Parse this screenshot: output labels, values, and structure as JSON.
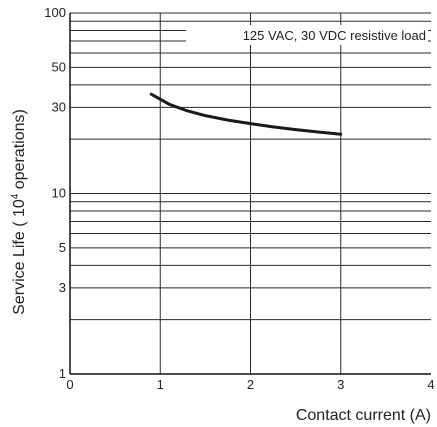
{
  "chart_data": {
    "type": "line",
    "xlabel": "Contact current (A)",
    "ylabel_prefix": "Service Life (  10",
    "ylabel_sup": "4",
    "ylabel_suffix": " operations)",
    "annotation": "125 VAC, 30 VDC resistive load",
    "x_scale": "linear",
    "y_scale": "log",
    "xlim": [
      0,
      4
    ],
    "ylim": [
      1,
      100
    ],
    "x_ticks": [
      "0",
      "1",
      "2",
      "3",
      "4"
    ],
    "y_ticks": [
      {
        "value": 1,
        "label": "1"
      },
      {
        "value": 3,
        "label": "3"
      },
      {
        "value": 5,
        "label": "5"
      },
      {
        "value": 10,
        "label": "10"
      },
      {
        "value": 30,
        "label": "30"
      },
      {
        "value": 50,
        "label": "50"
      },
      {
        "value": 100,
        "label": "100"
      }
    ],
    "y_grid": [
      2,
      3,
      4,
      5,
      6,
      7,
      8,
      9,
      10,
      20,
      30,
      40,
      50,
      60,
      70,
      80,
      90,
      100
    ],
    "x_grid": [
      1,
      2,
      3
    ],
    "grid": true,
    "series": [
      {
        "x": [
          0.9,
          1.1,
          1.3,
          1.5,
          1.75,
          2.0,
          2.25,
          2.5,
          2.75,
          3.0
        ],
        "y": [
          35.5,
          31.2,
          28.7,
          27.0,
          25.5,
          24.4,
          23.4,
          22.6,
          21.9,
          21.3
        ]
      }
    ],
    "colors": {
      "line": "#1a1a1a",
      "grid": "#2a2a2a",
      "text": "#222222"
    }
  }
}
